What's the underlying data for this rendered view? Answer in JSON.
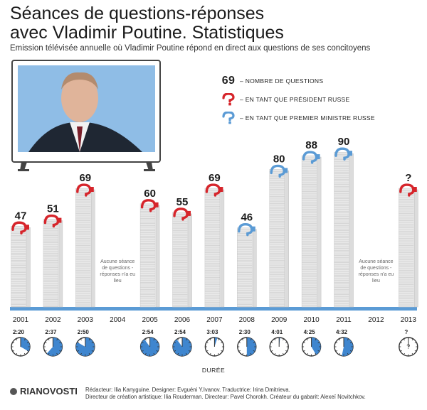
{
  "title_line1": "Séances de questions-réponses",
  "title_line2": "avec Vladimir Poutine. Statistiques",
  "subtitle": "Emission télévisée annuelle où Vladimir Poutine répond en direct aux questions de ses concitoyens",
  "legend": {
    "count_symbol": "69",
    "count_label": "– NOMBRE DE QUESTIONS",
    "president_label": "– EN TANT QUE PRÉSIDENT RUSSE",
    "pm_label": "– EN TANT QUE PREMIER MINISTRE RUSSE"
  },
  "colors": {
    "president": "#d6252b",
    "prime_minister": "#5b9bd5",
    "baseline": "#5b9bd5",
    "bars": "#e8e8e8",
    "clock_fill": "#3f86cf"
  },
  "no_session_note": [
    "Aucune séance",
    "de questions -",
    "réponses n'a eu",
    "lieu"
  ],
  "duration_label": "DURÉE",
  "credits_line1": "Rédacteur: Ilia Kanyguine. Designer: Evguéni Y.Ivanov. Traductrice: Irina Dmitrieva.",
  "credits_line2": "Directeur de création artistique: Ilia Rouderman. Directeur: Pavel Chorokh. Créateur du gabarit: Alexeï Novitchkov.",
  "logo_text": "RIANOVOSTI",
  "chart_data": {
    "type": "bar",
    "categories": [
      "2001",
      "2002",
      "2003",
      "2004",
      "2005",
      "2006",
      "2007",
      "2008",
      "2009",
      "2010",
      "2011",
      "2012",
      "2013"
    ],
    "values": [
      47,
      51,
      69,
      null,
      60,
      55,
      69,
      46,
      80,
      88,
      90,
      null,
      69
    ],
    "value_labels": [
      "47",
      "51",
      "69",
      "",
      "60",
      "55",
      "69",
      "46",
      "80",
      "88",
      "90",
      "",
      "?"
    ],
    "role": [
      "president",
      "president",
      "president",
      "none",
      "president",
      "president",
      "president",
      "pm",
      "pm",
      "pm",
      "pm",
      "none",
      "president"
    ],
    "durations": [
      "2:20",
      "2:37",
      "2:50",
      "",
      "2:54",
      "2:54",
      "3:03",
      "2:30",
      "4:01",
      "4:25",
      "4:32",
      "",
      "?"
    ],
    "duration_minutes": [
      140,
      157,
      170,
      null,
      174,
      174,
      183,
      150,
      241,
      265,
      272,
      null,
      null
    ],
    "ylim": [
      0,
      100
    ]
  }
}
